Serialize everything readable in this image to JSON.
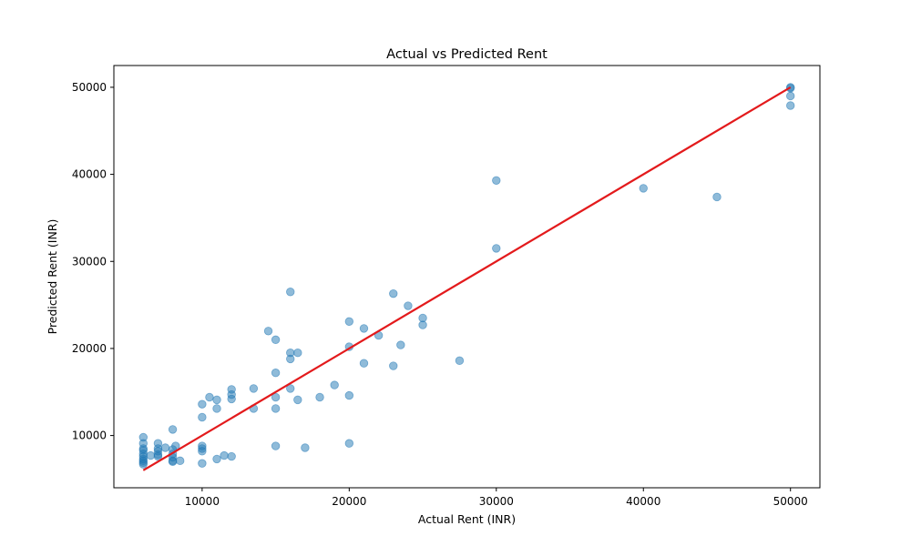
{
  "chart_data": {
    "type": "scatter",
    "title": "Actual vs Predicted Rent",
    "xlabel": "Actual Rent (INR)",
    "ylabel": "Predicted Rent (INR)",
    "xlim": [
      4000,
      52000
    ],
    "ylim": [
      4000,
      52500
    ],
    "x_ticks": [
      10000,
      20000,
      30000,
      40000,
      50000
    ],
    "y_ticks": [
      10000,
      20000,
      30000,
      40000,
      50000
    ],
    "x_tick_labels": [
      "10000",
      "20000",
      "30000",
      "40000",
      "50000"
    ],
    "y_tick_labels": [
      "10000",
      "20000",
      "30000",
      "40000",
      "50000"
    ],
    "grid": false,
    "point_color": "#1f77b4",
    "line_color": "#e31a1c",
    "reference_line": {
      "x": [
        6000,
        50000
      ],
      "y": [
        6000,
        50000
      ]
    },
    "points": [
      [
        6000,
        9800
      ],
      [
        6000,
        9100
      ],
      [
        6000,
        8500
      ],
      [
        6000,
        8300
      ],
      [
        6000,
        7900
      ],
      [
        6000,
        7600
      ],
      [
        6000,
        7300
      ],
      [
        6000,
        7100
      ],
      [
        6000,
        6900
      ],
      [
        6000,
        6700
      ],
      [
        6500,
        7700
      ],
      [
        7000,
        9100
      ],
      [
        7000,
        8500
      ],
      [
        7000,
        8200
      ],
      [
        7000,
        7800
      ],
      [
        7000,
        7600
      ],
      [
        7500,
        8600
      ],
      [
        8000,
        10700
      ],
      [
        8000,
        8400
      ],
      [
        8000,
        7900
      ],
      [
        8000,
        7500
      ],
      [
        8000,
        7100
      ],
      [
        8000,
        7000
      ],
      [
        8200,
        8800
      ],
      [
        8500,
        7100
      ],
      [
        10000,
        13600
      ],
      [
        10000,
        12100
      ],
      [
        10000,
        8800
      ],
      [
        10000,
        8500
      ],
      [
        10000,
        8200
      ],
      [
        10000,
        6800
      ],
      [
        10500,
        14400
      ],
      [
        11000,
        14100
      ],
      [
        11000,
        13100
      ],
      [
        11000,
        7300
      ],
      [
        11500,
        7700
      ],
      [
        12000,
        15300
      ],
      [
        12000,
        14700
      ],
      [
        12000,
        14200
      ],
      [
        12000,
        7600
      ],
      [
        13500,
        15400
      ],
      [
        13500,
        13100
      ],
      [
        14500,
        22000
      ],
      [
        15000,
        21000
      ],
      [
        15000,
        17200
      ],
      [
        15000,
        14400
      ],
      [
        15000,
        13100
      ],
      [
        15000,
        8800
      ],
      [
        16000,
        26500
      ],
      [
        16000,
        19500
      ],
      [
        16000,
        18800
      ],
      [
        16000,
        15400
      ],
      [
        16500,
        19500
      ],
      [
        16500,
        14100
      ],
      [
        17000,
        8600
      ],
      [
        18000,
        14400
      ],
      [
        19000,
        15800
      ],
      [
        20000,
        23100
      ],
      [
        20000,
        20200
      ],
      [
        20000,
        14600
      ],
      [
        20000,
        9100
      ],
      [
        21000,
        22300
      ],
      [
        21000,
        18300
      ],
      [
        22000,
        21500
      ],
      [
        23000,
        26300
      ],
      [
        23000,
        18000
      ],
      [
        23500,
        20400
      ],
      [
        24000,
        24900
      ],
      [
        25000,
        23500
      ],
      [
        25000,
        22700
      ],
      [
        27500,
        18600
      ],
      [
        30000,
        39300
      ],
      [
        30000,
        31500
      ],
      [
        40000,
        38400
      ],
      [
        45000,
        37400
      ],
      [
        50000,
        50000
      ],
      [
        50000,
        49900
      ],
      [
        50000,
        49000
      ],
      [
        50000,
        47900
      ]
    ]
  }
}
